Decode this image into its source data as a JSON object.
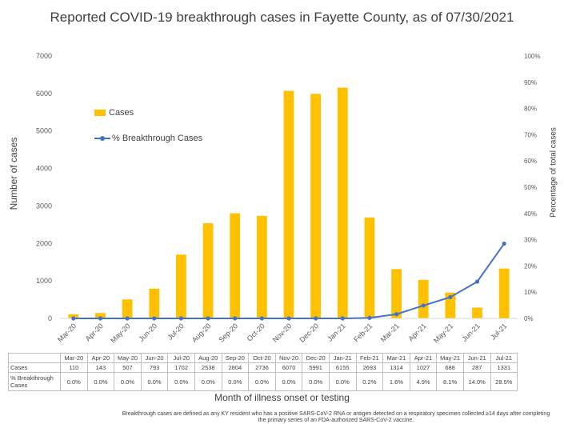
{
  "chart_data": {
    "type": "bar",
    "title": "Reported COVID-19 breakthrough cases in Fayette County, as of 07/30/2021",
    "xlabel": "Month of illness onset or testing",
    "ylabel": "Number of cases",
    "y2label": "Percentage of total cases",
    "categories": [
      "Mar-20",
      "Apr-20",
      "May-20",
      "Jun-20",
      "Jul-20",
      "Aug-20",
      "Sep-20",
      "Oct-20",
      "Nov-20",
      "Dec-20",
      "Jan-21",
      "Feb-21",
      "Mar-21",
      "Apr-21",
      "May-21",
      "Jun-21",
      "Jul-21"
    ],
    "ylim": [
      0,
      7000
    ],
    "yticks": [
      0,
      1000,
      2000,
      3000,
      4000,
      5000,
      6000,
      7000
    ],
    "y2lim": [
      0,
      100
    ],
    "y2ticks": [
      "0%",
      "10%",
      "20%",
      "30%",
      "40%",
      "50%",
      "60%",
      "70%",
      "80%",
      "90%",
      "100%"
    ],
    "series": [
      {
        "name": "Cases",
        "type": "bar",
        "axis": "left",
        "color": "#FFC000",
        "values": [
          110,
          143,
          507,
          793,
          1702,
          2538,
          2804,
          2736,
          6070,
          5991,
          6155,
          2693,
          1314,
          1027,
          688,
          287,
          1331
        ]
      },
      {
        "name": "% Breakthrough Cases",
        "type": "line",
        "axis": "right",
        "color": "#4472C4",
        "values": [
          0.0,
          0.0,
          0.0,
          0.0,
          0.0,
          0.0,
          0.0,
          0.0,
          0.0,
          0.0,
          0.0,
          0.2,
          1.6,
          4.9,
          8.1,
          14.0,
          28.5
        ]
      }
    ],
    "table": {
      "row_labels": [
        "Cases",
        "% Breakthrough Cases"
      ],
      "cases": [
        "110",
        "143",
        "507",
        "793",
        "1702",
        "2538",
        "2804",
        "2736",
        "6070",
        "5991",
        "6155",
        "2693",
        "1314",
        "1027",
        "688",
        "287",
        "1331"
      ],
      "pct": [
        "0.0%",
        "0.0%",
        "0.0%",
        "0.0%",
        "0.0%",
        "0.0%",
        "0.0%",
        "0.0%",
        "0.0%",
        "0.0%",
        "0.0%",
        "0.2%",
        "1.6%",
        "4.9%",
        "8.1%",
        "14.0%",
        "28.5%"
      ]
    },
    "legend": "top-left",
    "grid": false,
    "footnote": "Breakthrough cases are defined as any KY resident who has a positive SARS-CoV-2 RNA or antigen detected on a respiratory specimen collected ≥14 days after completing the primary series of an FDA-authorized SARS-CoV-2 vaccine."
  }
}
